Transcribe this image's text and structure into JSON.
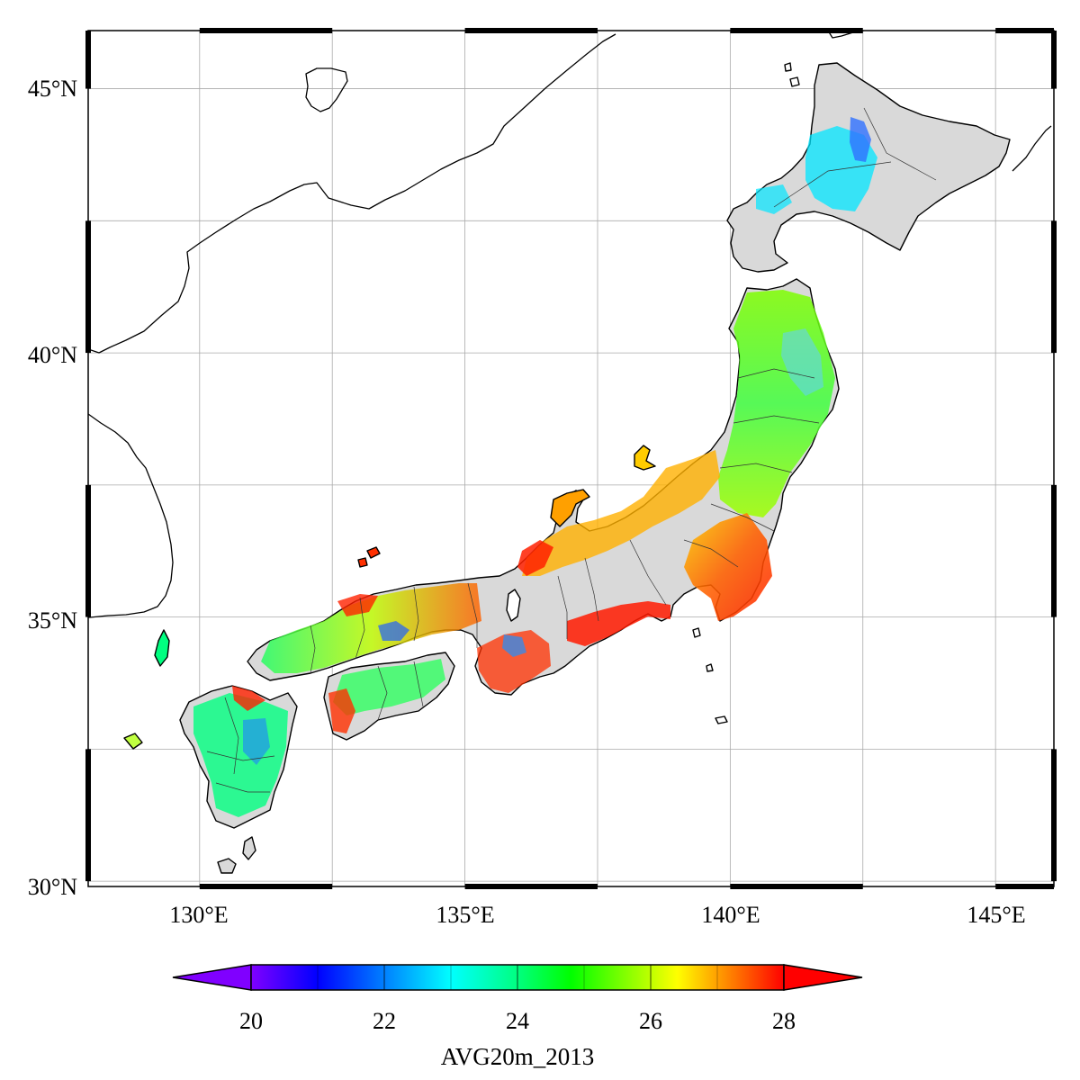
{
  "map": {
    "lon_range": [
      127.9,
      146.1
    ],
    "lat_range": [
      29.9,
      46.1
    ],
    "lon_ticks": [
      "130°E",
      "135°E",
      "140°E",
      "145°E"
    ],
    "lat_ticks": [
      "30°N",
      "35°N",
      "40°N",
      "45°N"
    ],
    "land_nodata_color": "#d9d9d9",
    "coast_color": "#000000",
    "grid_color": "#aaaaaa"
  },
  "colorbar": {
    "title": "AVG20m_2013",
    "min": 20,
    "max": 28,
    "tick_labels": [
      "20",
      "22",
      "24",
      "26",
      "28"
    ],
    "extend": "both",
    "stops": [
      "#8000ff",
      "#0000ff",
      "#0080ff",
      "#00ffff",
      "#00ff80",
      "#00ff00",
      "#80ff00",
      "#ffff00",
      "#ff8000",
      "#ff0000"
    ],
    "under_color": "#8000ff",
    "over_color": "#ff0000"
  }
}
